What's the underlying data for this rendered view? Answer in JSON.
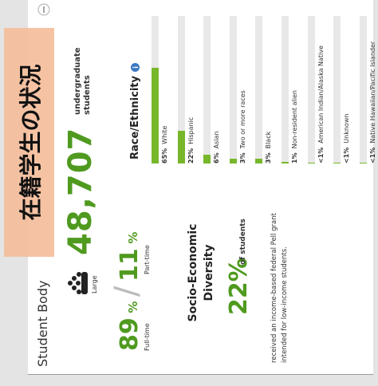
{
  "overlay_title": "在籍学生の状況",
  "section_title": "Student Body",
  "size_label": "Large",
  "enrollment": {
    "count": "48,707",
    "label": "undergraduate students"
  },
  "attendance": {
    "full_time": "89",
    "full_time_unit": "%",
    "separator": "/",
    "part_time": "11",
    "part_time_unit": "%",
    "full_time_label": "Full-time",
    "part_time_label": "Part-time"
  },
  "socio_economic": {
    "title": "Socio-Economic Diversity",
    "value": "22%",
    "value_label": "of students",
    "description": "received an income-based federal Pell grant intended for low-income students."
  },
  "race": {
    "title": "Race/Ethnicity",
    "categories": [
      "White",
      "Hispanic",
      "Asian",
      "Two or more races",
      "Black",
      "Non-resident alien",
      "American Indian/Alaska Native",
      "Unknown",
      "Native Hawaiian/Pacific Islander"
    ],
    "values": [
      65,
      22,
      6,
      3,
      3,
      1,
      0.5,
      0.5,
      0.5
    ],
    "value_labels": [
      "65%",
      "22%",
      "6%",
      "3%",
      "3%",
      "1%",
      "<1%",
      "<1%",
      "<1%"
    ],
    "color": "#77b82b",
    "xlim": [
      0,
      100
    ]
  }
}
